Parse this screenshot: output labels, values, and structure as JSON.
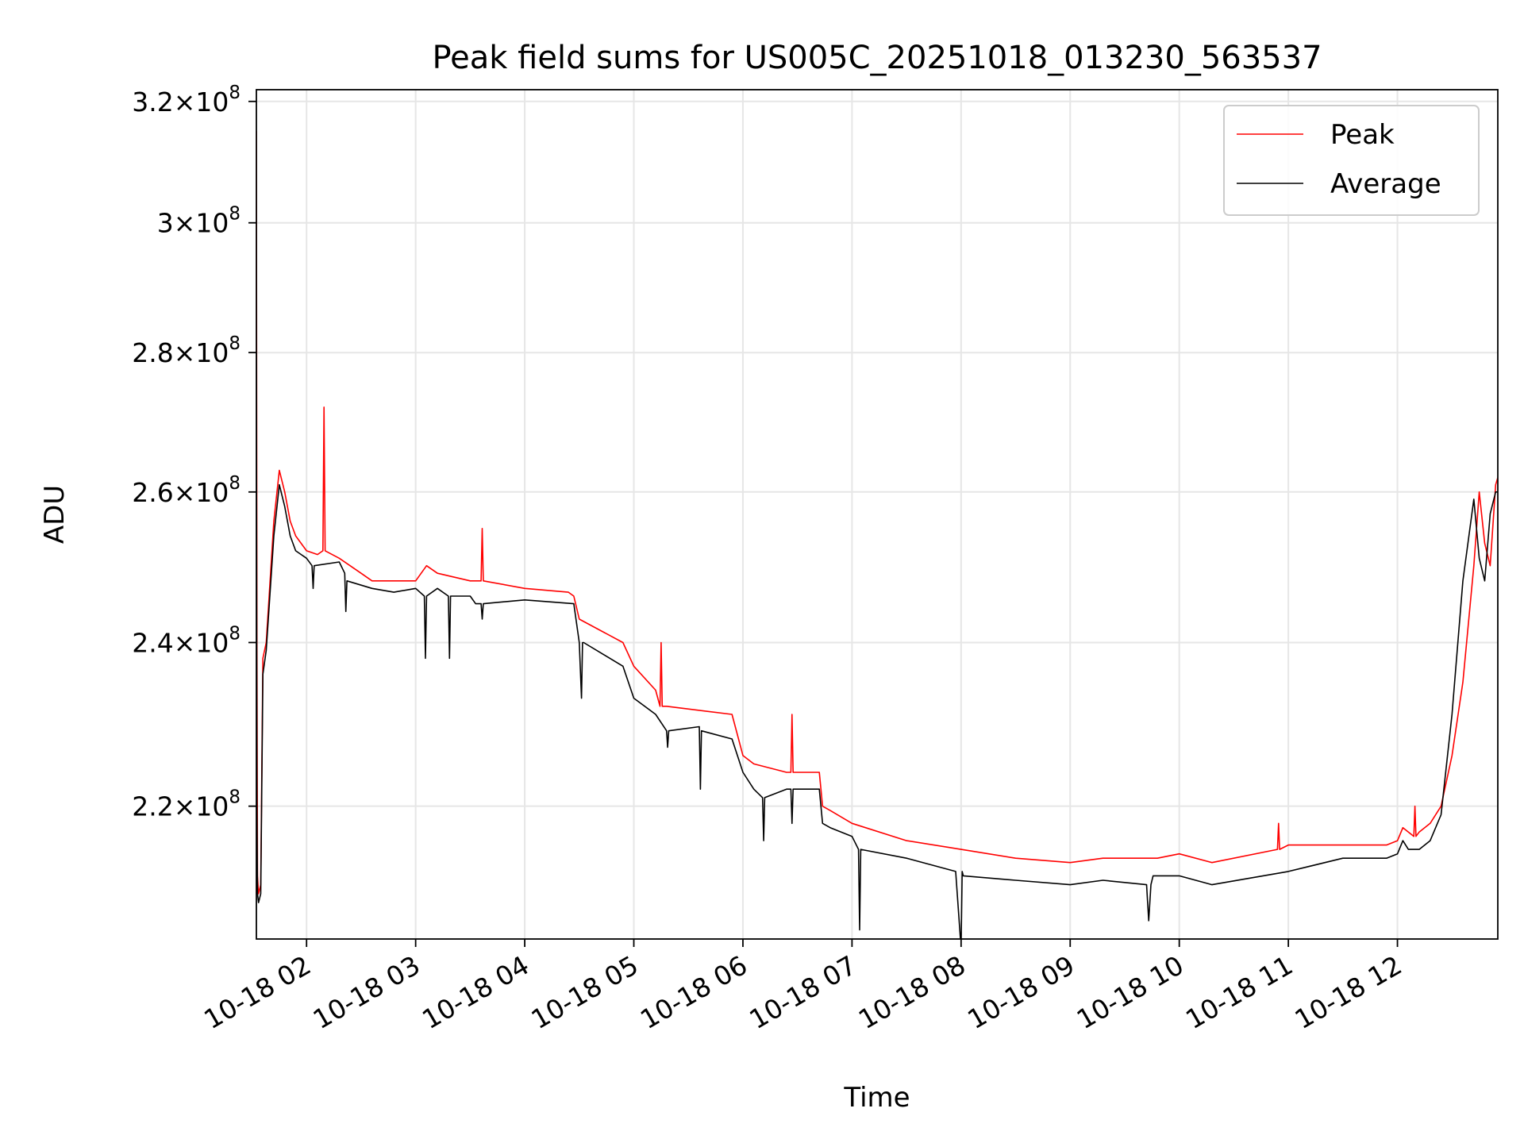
{
  "chart_data": {
    "type": "line",
    "title": "Peak field sums for US005C_20251018_013230_563537",
    "xlabel": "Time",
    "ylabel": "ADU",
    "yscale": "log",
    "xlim": [
      1.54,
      12.92
    ],
    "ylim": [
      205000000.0,
      322000000.0
    ],
    "grid": true,
    "legend_position": "upper right",
    "x_unit": "hours since 2025-10-18 00:00",
    "x_ticks": [
      {
        "value": 2,
        "label": "10-18 02"
      },
      {
        "value": 3,
        "label": "10-18 03"
      },
      {
        "value": 4,
        "label": "10-18 04"
      },
      {
        "value": 5,
        "label": "10-18 05"
      },
      {
        "value": 6,
        "label": "10-18 06"
      },
      {
        "value": 7,
        "label": "10-18 07"
      },
      {
        "value": 8,
        "label": "10-18 08"
      },
      {
        "value": 9,
        "label": "10-18 09"
      },
      {
        "value": 10,
        "label": "10-18 10"
      },
      {
        "value": 11,
        "label": "10-18 11"
      },
      {
        "value": 12,
        "label": "10-18 12"
      }
    ],
    "y_ticks": [
      {
        "value": 220000000.0,
        "mant": "2.2",
        "exp": "8"
      },
      {
        "value": 240000000.0,
        "mant": "2.4",
        "exp": "8"
      },
      {
        "value": 260000000.0,
        "mant": "2.6",
        "exp": "8"
      },
      {
        "value": 280000000.0,
        "mant": "2.8",
        "exp": "8"
      },
      {
        "value": 300000000.0,
        "mant": "3",
        "exp": "8"
      },
      {
        "value": 320000000.0,
        "mant": "3.2",
        "exp": "8"
      }
    ],
    "series": [
      {
        "name": "Peak",
        "color": "#ff0000",
        "x": [
          1.54,
          1.545,
          1.55,
          1.56,
          1.58,
          1.6,
          1.63,
          1.7,
          1.75,
          1.8,
          1.85,
          1.9,
          2.0,
          2.1,
          2.15,
          2.16,
          2.17,
          2.3,
          2.5,
          2.6,
          2.8,
          3.0,
          3.1,
          3.2,
          3.5,
          3.6,
          3.61,
          3.62,
          4.0,
          4.4,
          4.45,
          4.5,
          4.9,
          5.0,
          5.2,
          5.24,
          5.25,
          5.26,
          5.3,
          5.9,
          6.0,
          6.1,
          6.4,
          6.44,
          6.45,
          6.46,
          6.7,
          6.73,
          6.8,
          7.0,
          7.5,
          8.0,
          8.5,
          9.0,
          9.3,
          9.8,
          10.0,
          10.3,
          10.9,
          10.91,
          10.92,
          11.0,
          11.5,
          11.9,
          12.0,
          12.05,
          12.1,
          12.15,
          12.16,
          12.17,
          12.2,
          12.3,
          12.4,
          12.5,
          12.6,
          12.7,
          12.75,
          12.8,
          12.85,
          12.9,
          12.92
        ],
        "y": [
          315000000.0,
          240000000.0,
          212000000.0,
          210000000.0,
          211000000.0,
          238000000.0,
          240000000.0,
          256000000.0,
          263000000.0,
          260000000.0,
          256000000.0,
          254000000.0,
          252000000.0,
          251500000.0,
          252000000.0,
          272000000.0,
          252000000.0,
          251000000.0,
          249000000.0,
          248000000.0,
          248000000.0,
          248000000.0,
          250000000.0,
          249000000.0,
          248000000.0,
          248000000.0,
          255000000.0,
          248000000.0,
          247000000.0,
          246500000.0,
          246000000.0,
          243000000.0,
          240000000.0,
          237000000.0,
          234000000.0,
          232000000.0,
          240000000.0,
          232000000.0,
          232000000.0,
          231000000.0,
          226000000.0,
          225000000.0,
          224000000.0,
          224000000.0,
          231000000.0,
          224000000.0,
          224000000.0,
          220000000.0,
          219500000.0,
          218000000.0,
          216000000.0,
          215000000.0,
          214000000.0,
          213500000.0,
          214000000.0,
          214000000.0,
          214500000.0,
          213500000.0,
          215000000.0,
          218000000.0,
          215000000.0,
          215500000.0,
          215500000.0,
          215500000.0,
          216000000.0,
          217500000.0,
          217000000.0,
          216500000.0,
          220000000.0,
          216500000.0,
          217000000.0,
          218000000.0,
          220000000.0,
          226000000.0,
          235000000.0,
          250000000.0,
          260000000.0,
          253000000.0,
          250000000.0,
          261000000.0,
          262000000.0
        ]
      },
      {
        "name": "Average",
        "color": "#000000",
        "x": [
          1.54,
          1.545,
          1.55,
          1.56,
          1.58,
          1.6,
          1.63,
          1.7,
          1.75,
          1.8,
          1.85,
          1.9,
          2.0,
          2.05,
          2.06,
          2.07,
          2.3,
          2.35,
          2.36,
          2.37,
          2.6,
          2.8,
          3.0,
          3.08,
          3.09,
          3.1,
          3.2,
          3.3,
          3.31,
          3.32,
          3.5,
          3.55,
          3.6,
          3.61,
          3.62,
          4.0,
          4.45,
          4.5,
          4.52,
          4.53,
          4.54,
          4.9,
          5.0,
          5.2,
          5.3,
          5.31,
          5.32,
          5.6,
          5.61,
          5.62,
          5.9,
          6.0,
          6.1,
          6.18,
          6.19,
          6.2,
          6.4,
          6.44,
          6.45,
          6.46,
          6.7,
          6.73,
          6.8,
          7.0,
          7.06,
          7.07,
          7.08,
          7.5,
          7.95,
          8.0,
          8.01,
          8.02,
          8.5,
          9.0,
          9.3,
          9.7,
          9.72,
          9.74,
          9.76,
          10.0,
          10.3,
          11.0,
          11.5,
          11.9,
          12.0,
          12.05,
          12.1,
          12.2,
          12.3,
          12.4,
          12.5,
          12.6,
          12.7,
          12.75,
          12.8,
          12.85,
          12.9,
          12.92
        ],
        "y": [
          280000000.0,
          220000000.0,
          210000000.0,
          209000000.0,
          210000000.0,
          236000000.0,
          239000000.0,
          254000000.0,
          261000000.0,
          258000000.0,
          254000000.0,
          252000000.0,
          251000000.0,
          250000000.0,
          247000000.0,
          250000000.0,
          250500000.0,
          249000000.0,
          244000000.0,
          248000000.0,
          247000000.0,
          246500000.0,
          247000000.0,
          246000000.0,
          238000000.0,
          246000000.0,
          247000000.0,
          246000000.0,
          238000000.0,
          246000000.0,
          246000000.0,
          245000000.0,
          245000000.0,
          243000000.0,
          245000000.0,
          245500000.0,
          245000000.0,
          240000000.0,
          233000000.0,
          240000000.0,
          240000000.0,
          237000000.0,
          233000000.0,
          231000000.0,
          229000000.0,
          227000000.0,
          229000000.0,
          229500000.0,
          222000000.0,
          229000000.0,
          228000000.0,
          224000000.0,
          222000000.0,
          221000000.0,
          216000000.0,
          221000000.0,
          222000000.0,
          222000000.0,
          218000000.0,
          222000000.0,
          222000000.0,
          218000000.0,
          217500000.0,
          216500000.0,
          215000000.0,
          206000000.0,
          215000000.0,
          214000000.0,
          212500000.0,
          204000000.0,
          212500000.0,
          212000000.0,
          211500000.0,
          211000000.0,
          211500000.0,
          211000000.0,
          207000000.0,
          211000000.0,
          212000000.0,
          212000000.0,
          211000000.0,
          212500000.0,
          214000000.0,
          214000000.0,
          214500000.0,
          216000000.0,
          215000000.0,
          215000000.0,
          216000000.0,
          219000000.0,
          231000000.0,
          248000000.0,
          259000000.0,
          251000000.0,
          248000000.0,
          257000000.0,
          260000000.0,
          260000000.0
        ]
      }
    ]
  }
}
